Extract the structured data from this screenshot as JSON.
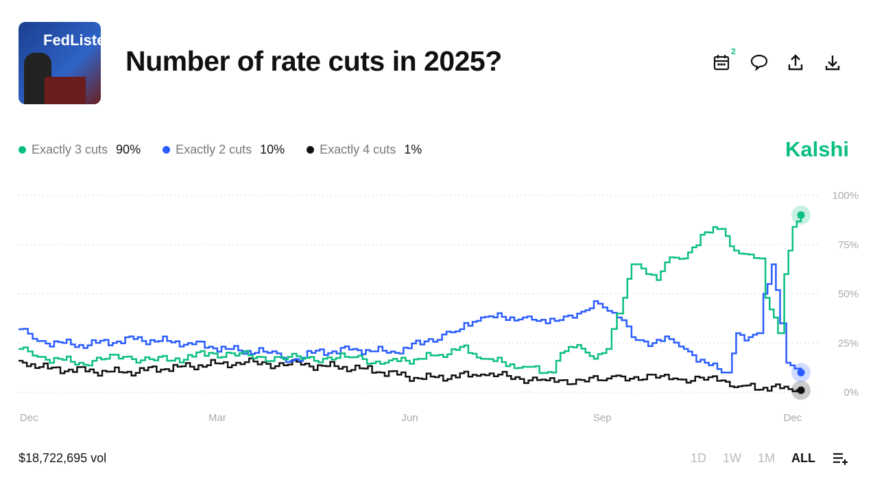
{
  "header": {
    "title": "Number of rate cuts in 2025?",
    "thumbnail_text": "FedListens",
    "calendar_badge": "2",
    "icons": [
      "calendar-icon",
      "comment-icon",
      "share-icon",
      "download-icon"
    ]
  },
  "brand": "Kalshi",
  "legend": [
    {
      "label": "Exactly 3 cuts",
      "value": "90%",
      "color": "#0bbf7e"
    },
    {
      "label": "Exactly 2 cuts",
      "value": "10%",
      "color": "#2a5cff"
    },
    {
      "label": "Exactly 4 cuts",
      "value": "1%",
      "color": "#111111"
    }
  ],
  "footer": {
    "volume": "$18,722,695 vol",
    "ranges": [
      "1D",
      "1W",
      "1M",
      "ALL"
    ],
    "active_range": "ALL"
  },
  "chart_data": {
    "type": "line",
    "grid": true,
    "ylim": [
      0,
      100
    ],
    "y_ticks": [
      "100%",
      "75%",
      "50%",
      "25%",
      "0%"
    ],
    "x_ticks": [
      {
        "label": "Dec",
        "date": "2024-12-01"
      },
      {
        "label": "Mar",
        "date": "2025-03-01"
      },
      {
        "label": "Jun",
        "date": "2025-06-01"
      },
      {
        "label": "Sep",
        "date": "2025-09-01"
      },
      {
        "label": "Dec",
        "date": "2025-12-01"
      }
    ],
    "xlim": [
      "2024-11-26",
      "2025-12-05"
    ],
    "series": [
      {
        "name": "Exactly 3 cuts",
        "color": "#0bbf7e",
        "points": [
          [
            "2024-11-26",
            22
          ],
          [
            "2024-12-05",
            18
          ],
          [
            "2024-12-25",
            15
          ],
          [
            "2025-01-15",
            18
          ],
          [
            "2025-02-05",
            16
          ],
          [
            "2025-02-25",
            20
          ],
          [
            "2025-03-20",
            18
          ],
          [
            "2025-04-10",
            17
          ],
          [
            "2025-05-01",
            18
          ],
          [
            "2025-05-20",
            15
          ],
          [
            "2025-06-05",
            17
          ],
          [
            "2025-06-15",
            19
          ],
          [
            "2025-06-25",
            23
          ],
          [
            "2025-07-05",
            17
          ],
          [
            "2025-07-25",
            13
          ],
          [
            "2025-08-08",
            10
          ],
          [
            "2025-08-12",
            20
          ],
          [
            "2025-08-20",
            24
          ],
          [
            "2025-08-28",
            17
          ],
          [
            "2025-09-03",
            22
          ],
          [
            "2025-09-08",
            40
          ],
          [
            "2025-09-11",
            48
          ],
          [
            "2025-09-15",
            65
          ],
          [
            "2025-09-22",
            60
          ],
          [
            "2025-09-27",
            57
          ],
          [
            "2025-10-01",
            66
          ],
          [
            "2025-10-10",
            68
          ],
          [
            "2025-10-18",
            80
          ],
          [
            "2025-10-28",
            83
          ],
          [
            "2025-11-03",
            72
          ],
          [
            "2025-11-10",
            70
          ],
          [
            "2025-11-15",
            68
          ],
          [
            "2025-11-18",
            48
          ],
          [
            "2025-11-22",
            38
          ],
          [
            "2025-11-24",
            30
          ],
          [
            "2025-11-27",
            60
          ],
          [
            "2025-12-01",
            84
          ],
          [
            "2025-12-05",
            90
          ]
        ]
      },
      {
        "name": "Exactly 2 cuts",
        "color": "#2a5cff",
        "points": [
          [
            "2024-11-26",
            32
          ],
          [
            "2024-12-05",
            26
          ],
          [
            "2024-12-25",
            24
          ],
          [
            "2025-01-20",
            27
          ],
          [
            "2025-02-15",
            25
          ],
          [
            "2025-03-05",
            22
          ],
          [
            "2025-03-25",
            20
          ],
          [
            "2025-04-05",
            16
          ],
          [
            "2025-04-15",
            20
          ],
          [
            "2025-05-05",
            22
          ],
          [
            "2025-05-25",
            20
          ],
          [
            "2025-06-10",
            27
          ],
          [
            "2025-06-25",
            32
          ],
          [
            "2025-07-05",
            38
          ],
          [
            "2025-07-25",
            38
          ],
          [
            "2025-08-05",
            35
          ],
          [
            "2025-08-20",
            40
          ],
          [
            "2025-08-30",
            45
          ],
          [
            "2025-09-08",
            38
          ],
          [
            "2025-09-15",
            28
          ],
          [
            "2025-09-25",
            25
          ],
          [
            "2025-10-03",
            27
          ],
          [
            "2025-10-10",
            22
          ],
          [
            "2025-10-20",
            15
          ],
          [
            "2025-10-28",
            10
          ],
          [
            "2025-10-31",
            10
          ],
          [
            "2025-11-04",
            30
          ],
          [
            "2025-11-10",
            28
          ],
          [
            "2025-11-14",
            30
          ],
          [
            "2025-11-17",
            50
          ],
          [
            "2025-11-19",
            55
          ],
          [
            "2025-11-21",
            65
          ],
          [
            "2025-11-25",
            35
          ],
          [
            "2025-11-28",
            15
          ],
          [
            "2025-12-02",
            12
          ],
          [
            "2025-12-05",
            10
          ]
        ]
      },
      {
        "name": "Exactly 4 cuts",
        "color": "#111111",
        "points": [
          [
            "2024-11-26",
            16
          ],
          [
            "2024-12-10",
            12
          ],
          [
            "2025-01-15",
            10
          ],
          [
            "2025-02-10",
            13
          ],
          [
            "2025-03-10",
            15
          ],
          [
            "2025-04-10",
            14
          ],
          [
            "2025-05-10",
            12
          ],
          [
            "2025-06-05",
            7
          ],
          [
            "2025-07-05",
            9
          ],
          [
            "2025-08-05",
            6
          ],
          [
            "2025-09-01",
            6
          ],
          [
            "2025-09-10",
            8
          ],
          [
            "2025-10-05",
            7
          ],
          [
            "2025-10-28",
            6
          ],
          [
            "2025-11-05",
            3
          ],
          [
            "2025-11-25",
            2
          ],
          [
            "2025-12-05",
            1
          ]
        ]
      }
    ]
  }
}
